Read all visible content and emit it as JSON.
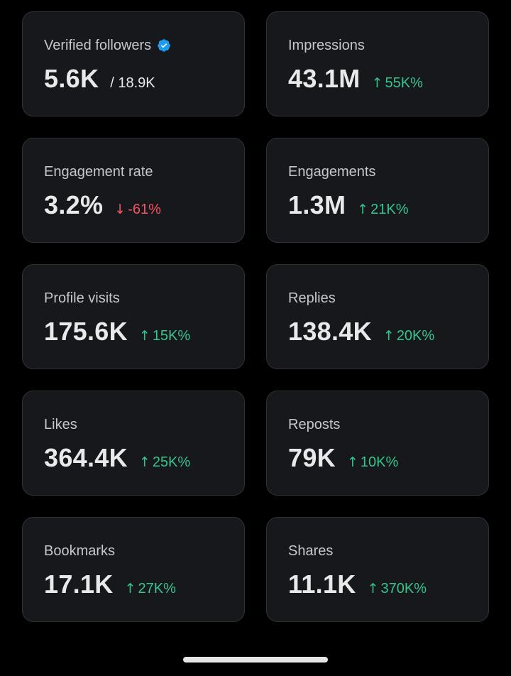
{
  "metrics": [
    {
      "label": "Verified followers",
      "value": "5.6K",
      "sub_total": "/ 18.9K",
      "verified_icon": "verified-badge-icon",
      "badge_color": "#1d9bf0"
    },
    {
      "label": "Impressions",
      "value": "43.1M",
      "delta": "55K%",
      "direction": "up",
      "arrow": "↑"
    },
    {
      "label": "Engagement rate",
      "value": "3.2%",
      "delta": "-61%",
      "direction": "down",
      "arrow": "↓"
    },
    {
      "label": "Engagements",
      "value": "1.3M",
      "delta": "21K%",
      "direction": "up",
      "arrow": "↑"
    },
    {
      "label": "Profile visits",
      "value": "175.6K",
      "delta": "15K%",
      "direction": "up",
      "arrow": "↑"
    },
    {
      "label": "Replies",
      "value": "138.4K",
      "delta": "20K%",
      "direction": "up",
      "arrow": "↑"
    },
    {
      "label": "Likes",
      "value": "364.4K",
      "delta": "25K%",
      "direction": "up",
      "arrow": "↑"
    },
    {
      "label": "Reposts",
      "value": "79K",
      "delta": "10K%",
      "direction": "up",
      "arrow": "↑"
    },
    {
      "label": "Bookmarks",
      "value": "17.1K",
      "delta": "27K%",
      "direction": "up",
      "arrow": "↑"
    },
    {
      "label": "Shares",
      "value": "11.1K",
      "delta": "370K%",
      "direction": "up",
      "arrow": "↑"
    }
  ],
  "colors": {
    "background": "#000000",
    "card_background": "#16181c",
    "card_border": "#2f3336",
    "up": "#35c48c",
    "down": "#f4535f",
    "verified_badge": "#1d9bf0"
  }
}
